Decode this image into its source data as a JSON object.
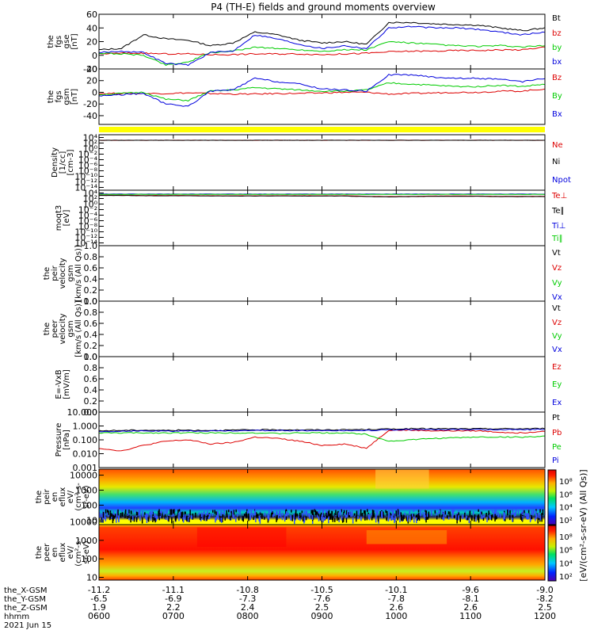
{
  "title": "P4 (TH-E) fields and ground moments overview",
  "chart_data": [
    {
      "type": "line",
      "id": "fgs_gse",
      "ylabel": [
        "the",
        "fgs",
        "gse",
        "[nT]"
      ],
      "ylim": [
        -20,
        60
      ],
      "ticks": [
        "60",
        "40",
        "20",
        "0",
        "-20"
      ],
      "tick_values": [
        60,
        40,
        20,
        0,
        -20
      ],
      "series": [
        {
          "name": "Bt",
          "color": "#000000",
          "values": [
            8,
            10,
            30,
            24,
            22,
            14,
            18,
            34,
            30,
            22,
            18,
            20,
            16,
            48,
            48,
            46,
            45,
            44,
            40,
            36,
            40
          ]
        },
        {
          "name": "bz",
          "color": "#dd0000",
          "values": [
            2,
            3,
            3,
            2,
            2,
            1,
            1,
            2,
            2,
            2,
            1,
            2,
            3,
            5,
            6,
            6,
            7,
            7,
            8,
            8,
            12
          ]
        },
        {
          "name": "by",
          "color": "#00cc00",
          "values": [
            3,
            2,
            0,
            -14,
            -10,
            4,
            6,
            12,
            10,
            8,
            6,
            8,
            8,
            20,
            18,
            16,
            14,
            13,
            14,
            12,
            14
          ]
        },
        {
          "name": "bx",
          "color": "#0000dd",
          "values": [
            4,
            6,
            4,
            -12,
            -14,
            4,
            6,
            30,
            24,
            16,
            10,
            14,
            10,
            40,
            42,
            40,
            40,
            38,
            34,
            30,
            34
          ]
        }
      ]
    },
    {
      "type": "line",
      "id": "fgs_gsm",
      "ylabel": [
        "the",
        "fgs",
        "gsm",
        "[nT]"
      ],
      "ylim": [
        -55,
        40
      ],
      "ticks": [
        "40",
        "20",
        "0",
        "-20",
        "-40"
      ],
      "tick_values": [
        40,
        20,
        0,
        -20,
        -40
      ],
      "series": [
        {
          "name": "Bz",
          "color": "#dd0000",
          "values": [
            -2,
            -2,
            -2,
            -2,
            -1,
            -2,
            -3,
            -3,
            -2,
            -2,
            -1,
            0,
            0,
            -3,
            -2,
            -1,
            0,
            0,
            2,
            2,
            6
          ]
        },
        {
          "name": "By",
          "color": "#00cc00",
          "values": [
            -4,
            -2,
            0,
            -12,
            -14,
            2,
            4,
            8,
            6,
            4,
            2,
            2,
            4,
            16,
            14,
            12,
            10,
            10,
            12,
            10,
            14
          ]
        },
        {
          "name": "Bx",
          "color": "#0000dd",
          "values": [
            -6,
            -4,
            -2,
            -20,
            -24,
            2,
            4,
            24,
            18,
            14,
            6,
            4,
            2,
            30,
            30,
            26,
            24,
            24,
            22,
            18,
            24
          ]
        }
      ]
    },
    {
      "type": "bar",
      "id": "flag_strip",
      "color": "#ffff00"
    },
    {
      "type": "line",
      "id": "density",
      "ylabel": [
        "Density",
        "[1/cc]",
        "[cm-3]"
      ],
      "scale": "log",
      "ticks": [
        "10⁴",
        "10²",
        "10⁰",
        "10⁻²",
        "10⁻⁴",
        "10⁻⁶",
        "10⁻⁸",
        "10⁻¹⁰",
        "10⁻¹²",
        "10⁻¹⁴"
      ],
      "tick_values": [
        4,
        2,
        0,
        -2,
        -4,
        -6,
        -8,
        -10,
        -12,
        -14
      ],
      "ylim": [
        -15,
        5
      ],
      "series": [
        {
          "name": "Ne",
          "color": "#dd0000",
          "values": [
            3,
            3,
            3,
            3,
            3,
            3,
            3,
            3,
            3,
            3,
            3,
            3,
            3,
            3,
            3,
            3,
            3,
            3,
            3,
            3,
            3
          ]
        },
        {
          "name": "Ni",
          "color": "#000000",
          "values": [
            3,
            3,
            3,
            3,
            3,
            3,
            3,
            3,
            3,
            3,
            3,
            3,
            3,
            3,
            3,
            3,
            3,
            3,
            3,
            3,
            3
          ]
        },
        {
          "name": "Npot",
          "color": "#0000dd",
          "values": []
        }
      ]
    },
    {
      "type": "line",
      "id": "temperature",
      "ylabel": [
        "moqt3",
        "[eV]"
      ],
      "scale": "log",
      "ticks": [
        "10⁴",
        "10²",
        "10⁰",
        "10⁻²",
        "10⁻⁴",
        "10⁻⁶",
        "10⁻⁸",
        "10⁻¹⁰",
        "10⁻¹²",
        "10⁻¹⁴"
      ],
      "tick_values": [
        4,
        2,
        0,
        -2,
        -4,
        -6,
        -8,
        -10,
        -12,
        -14
      ],
      "ylim": [
        -15,
        5
      ],
      "series": [
        {
          "name": "Te⊥",
          "color": "#dd0000",
          "values": [
            3.2,
            3.2,
            3.1,
            3.1,
            3.1,
            3.0,
            3.0,
            3.0,
            3.0,
            3.0,
            3.0,
            3.0,
            2.8,
            2.7,
            2.8,
            2.9,
            2.9,
            2.9,
            2.8,
            2.8,
            2.8
          ]
        },
        {
          "name": "Te∥",
          "color": "#000000",
          "values": [
            3.1,
            3.1,
            3.0,
            3.0,
            3.0,
            2.9,
            2.9,
            2.9,
            2.9,
            2.9,
            2.9,
            2.9,
            2.7,
            2.6,
            2.7,
            2.8,
            2.8,
            2.8,
            2.7,
            2.7,
            2.7
          ]
        },
        {
          "name": "Ti⊥",
          "color": "#0000dd",
          "values": [
            3.6,
            3.6,
            3.6,
            3.6,
            3.6,
            3.6,
            3.6,
            3.6,
            3.6,
            3.6,
            3.6,
            3.6,
            3.6,
            3.6,
            3.6,
            3.6,
            3.6,
            3.6,
            3.6,
            3.6,
            3.6
          ]
        },
        {
          "name": "Ti∥",
          "color": "#00cc00",
          "values": [
            3.5,
            3.5,
            3.5,
            3.5,
            3.5,
            3.5,
            3.5,
            3.5,
            3.5,
            3.5,
            3.5,
            3.5,
            3.5,
            3.5,
            3.5,
            3.5,
            3.5,
            3.5,
            3.5,
            3.5,
            3.5
          ]
        }
      ]
    },
    {
      "type": "line",
      "id": "peir_velocity",
      "ylabel": [
        "the",
        "peir",
        "velocity",
        "gsm",
        "[km/s (All Qs)]"
      ],
      "ylim": [
        0,
        1
      ],
      "ticks": [
        "1.0",
        "0.8",
        "0.6",
        "0.4",
        "0.2",
        "0.0"
      ],
      "tick_values": [
        1,
        0.8,
        0.6,
        0.4,
        0.2,
        0
      ],
      "series": [
        {
          "name": "Vt",
          "color": "#000000",
          "values": []
        },
        {
          "name": "Vz",
          "color": "#dd0000",
          "values": []
        },
        {
          "name": "Vy",
          "color": "#00cc00",
          "values": []
        },
        {
          "name": "Vx",
          "color": "#0000dd",
          "values": []
        }
      ]
    },
    {
      "type": "line",
      "id": "peer_velocity",
      "ylabel": [
        "the",
        "peer",
        "velocity",
        "gsm",
        "[km/s (All Qs)]"
      ],
      "ylim": [
        0,
        1
      ],
      "ticks": [
        "1.0",
        "0.8",
        "0.6",
        "0.4",
        "0.2",
        "0.0"
      ],
      "tick_values": [
        1,
        0.8,
        0.6,
        0.4,
        0.2,
        0
      ],
      "series": [
        {
          "name": "Vt",
          "color": "#000000",
          "values": []
        },
        {
          "name": "Vz",
          "color": "#dd0000",
          "values": []
        },
        {
          "name": "Vy",
          "color": "#00cc00",
          "values": []
        },
        {
          "name": "Vx",
          "color": "#0000dd",
          "values": []
        }
      ]
    },
    {
      "type": "line",
      "id": "efield",
      "ylabel": [
        "E=-VxB",
        "[mV/m]"
      ],
      "ylim": [
        0,
        1
      ],
      "ticks": [
        "1.0",
        "0.8",
        "0.6",
        "0.4",
        "0.2",
        "0.0"
      ],
      "tick_values": [
        1,
        0.8,
        0.6,
        0.4,
        0.2,
        0
      ],
      "series": [
        {
          "name": "Ez",
          "color": "#dd0000",
          "values": []
        },
        {
          "name": "Ey",
          "color": "#00cc00",
          "values": []
        },
        {
          "name": "Ex",
          "color": "#0000dd",
          "values": []
        }
      ]
    },
    {
      "type": "line",
      "id": "pressure",
      "ylabel": [
        "Pressure",
        "[nPa]"
      ],
      "scale": "log",
      "ticks": [
        "10.000",
        "1.000",
        "0.100",
        "0.010",
        "0.001"
      ],
      "tick_values": [
        1,
        0,
        -1,
        -2,
        -3
      ],
      "ylim": [
        -3,
        1
      ],
      "series": [
        {
          "name": "Pt",
          "color": "#000000",
          "values": [
            -0.35,
            -0.32,
            -0.3,
            -0.32,
            -0.3,
            -0.32,
            -0.3,
            -0.28,
            -0.27,
            -0.28,
            -0.28,
            -0.27,
            -0.25,
            -0.22,
            -0.2,
            -0.2,
            -0.2,
            -0.2,
            -0.2,
            -0.2,
            -0.18
          ]
        },
        {
          "name": "Pb",
          "color": "#dd0000",
          "values": [
            -1.6,
            -1.8,
            -1.4,
            -1.1,
            -1.0,
            -1.3,
            -1.2,
            -0.8,
            -0.9,
            -1.1,
            -1.4,
            -1.3,
            -1.6,
            -0.3,
            -0.3,
            -0.35,
            -0.35,
            -0.35,
            -0.45,
            -0.5,
            -0.35
          ]
        },
        {
          "name": "Pe",
          "color": "#00cc00",
          "values": [
            -0.5,
            -0.5,
            -0.5,
            -0.5,
            -0.5,
            -0.5,
            -0.5,
            -0.5,
            -0.55,
            -0.5,
            -0.5,
            -0.5,
            -0.6,
            -1.1,
            -1.0,
            -0.9,
            -0.85,
            -0.8,
            -0.8,
            -0.8,
            -0.75
          ]
        },
        {
          "name": "Pi",
          "color": "#0000dd",
          "values": [
            -0.4,
            -0.38,
            -0.36,
            -0.38,
            -0.36,
            -0.36,
            -0.34,
            -0.33,
            -0.33,
            -0.33,
            -0.33,
            -0.33,
            -0.32,
            -0.28,
            -0.26,
            -0.26,
            -0.26,
            -0.26,
            -0.26,
            -0.26,
            -0.25
          ]
        }
      ]
    },
    {
      "type": "heatmap",
      "id": "peir_eflux",
      "ylabel": [
        "the",
        "peir",
        "en",
        "eflux",
        "eV/",
        "(cm²-s-",
        "sr-eV)"
      ],
      "scale": "log",
      "ticks": [
        "10000",
        "1000",
        "100",
        "10"
      ],
      "tick_values": [
        4,
        3,
        2,
        1
      ],
      "ylim": [
        0.7,
        4.4
      ]
    },
    {
      "type": "heatmap",
      "id": "peer_eflux",
      "ylabel": [
        "the",
        "peer",
        "en",
        "eflux",
        "eV/",
        "(cm²-s-",
        "sr-eV)"
      ],
      "scale": "log",
      "ticks": [
        "10000",
        "1000",
        "100",
        "10"
      ],
      "tick_values": [
        4,
        3,
        2,
        1
      ],
      "ylim": [
        0.85,
        3.85
      ]
    }
  ],
  "colorbar": {
    "label": "[eV/(cm²-s-sr-eV) (All Qs)]",
    "upper_ticks": [
      "10⁸",
      "10⁶",
      "10⁴",
      "10²"
    ],
    "lower_ticks": [
      "10⁸",
      "10⁶",
      "10⁴",
      "10²"
    ]
  },
  "x_axis": {
    "row_labels": [
      "the_X-GSM",
      "the_Y-GSM",
      "the_Z-GSM",
      "hhmm"
    ],
    "date": "2021 Jun 15",
    "columns": [
      [
        "-11.2",
        "-6.5",
        "1.9",
        "0600"
      ],
      [
        "-11.1",
        "-6.9",
        "2.2",
        "0700"
      ],
      [
        "-10.8",
        "-7.3",
        "2.4",
        "0800"
      ],
      [
        "-10.5",
        "-7.6",
        "2.5",
        "0900"
      ],
      [
        "-10.1",
        "-7.8",
        "2.6",
        "1000"
      ],
      [
        "-9.6",
        "-8.1",
        "2.6",
        "1100"
      ],
      [
        "-9.0",
        "-8.2",
        "2.5",
        "1200"
      ]
    ]
  }
}
